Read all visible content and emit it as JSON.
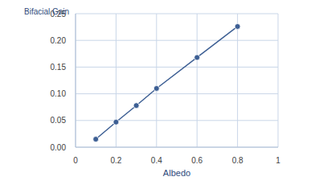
{
  "chart_data": {
    "type": "line",
    "title": "Bifacial Gain",
    "x_label": "Albedo",
    "x": [
      0.1,
      0.2,
      0.3,
      0.4,
      0.6,
      0.8
    ],
    "values": [
      0.015,
      0.047,
      0.078,
      0.11,
      0.168,
      0.226
    ],
    "color": "#3d5f94",
    "marker": "circle",
    "grid": true,
    "xlim": [
      0,
      1
    ],
    "xticks": [
      0,
      0.2,
      0.4,
      0.6,
      0.8,
      1
    ],
    "ylim": [
      0,
      0.25
    ],
    "yticks": [
      {
        "value": 0,
        "label": "0.00"
      },
      0.05,
      {
        "value": 0.1,
        "label": "0.10"
      },
      0.15,
      {
        "value": 0.2,
        "label": "0.20"
      },
      0.25
    ]
  }
}
